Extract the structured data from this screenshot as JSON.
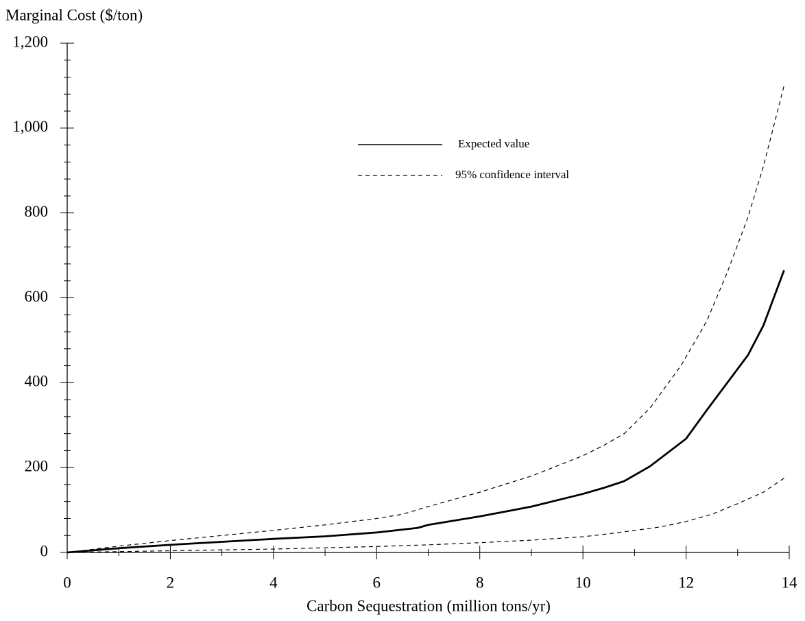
{
  "chart_data": {
    "type": "line",
    "y_label": "Marginal Cost ($/ton)",
    "x_label": "Carbon Sequestration (million tons/yr)",
    "xlim": [
      0,
      14
    ],
    "xticks": [
      0,
      2,
      4,
      6,
      8,
      10,
      12,
      14
    ],
    "xminorticks": [
      1,
      3,
      5,
      7,
      9,
      11,
      13
    ],
    "ylim": [
      0,
      1200
    ],
    "yticks": [
      0,
      200,
      400,
      600,
      800,
      {
        "value": 1000,
        "label": "1,000"
      },
      {
        "value": 1200,
        "label": "1,200"
      }
    ],
    "yminorticks": [
      40,
      80,
      120,
      160,
      240,
      280,
      320,
      360,
      440,
      480,
      520,
      560,
      640,
      680,
      720,
      760,
      840,
      880,
      920,
      960,
      1040,
      1080,
      1120,
      1160
    ],
    "series": [
      {
        "name": "Expected value",
        "color": "#000000",
        "style": "solid",
        "x": [
          0,
          1,
          2,
          3,
          4,
          5,
          6,
          6.8,
          7,
          8,
          9,
          10,
          10.4,
          10.8,
          11.3,
          12,
          12.4,
          12.8,
          13.2,
          13.5,
          13.7,
          13.9
        ],
        "values": [
          0,
          10,
          18,
          25,
          32,
          38,
          47,
          58,
          65,
          85,
          108,
          138,
          152,
          168,
          203,
          268,
          335,
          400,
          465,
          535,
          600,
          665
        ]
      },
      {
        "name": "95% confidence interval",
        "color": "#000000",
        "style": "dashed",
        "x": [
          0,
          1,
          2,
          3,
          4,
          5,
          6,
          6.5,
          7,
          8,
          9,
          10,
          10.4,
          10.8,
          11.3,
          11.9,
          12.4,
          12.8,
          13.2,
          13.5,
          13.9
        ],
        "values": [
          0,
          15,
          28,
          40,
          52,
          65,
          80,
          90,
          108,
          142,
          180,
          228,
          252,
          280,
          340,
          440,
          545,
          660,
          790,
          910,
          1100
        ]
      },
      {
        "color": "#000000",
        "style": "dashed",
        "x": [
          0,
          1,
          2,
          3,
          4,
          5,
          6,
          7,
          8,
          9,
          10,
          10.5,
          11,
          11.5,
          12,
          12.5,
          13,
          13.5,
          13.9
        ],
        "values": [
          0,
          2,
          4,
          6,
          8,
          11,
          14,
          18,
          23,
          29,
          37,
          44,
          52,
          60,
          73,
          90,
          115,
          142,
          175
        ]
      }
    ]
  }
}
